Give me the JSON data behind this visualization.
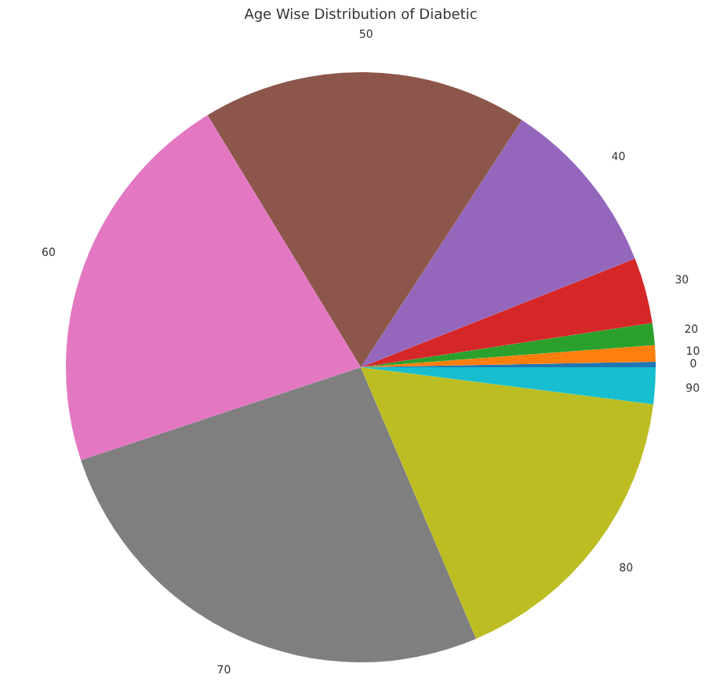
{
  "chart_data": {
    "type": "pie",
    "title": "Age Wise Distribution of Diabetic",
    "categories": [
      "0",
      "10",
      "20",
      "30",
      "40",
      "50",
      "60",
      "70",
      "80",
      "90"
    ],
    "values": [
      0.3,
      0.9,
      1.2,
      3.6,
      9.8,
      17.9,
      21.4,
      26.3,
      16.6,
      2.0
    ],
    "colors": [
      "#1f77b4",
      "#ff7f0e",
      "#2ca02c",
      "#d62728",
      "#9467bd",
      "#8c564b",
      "#e377c2",
      "#7f7f7f",
      "#bcbd22",
      "#17becf"
    ]
  }
}
